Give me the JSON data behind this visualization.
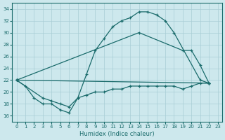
{
  "xlabel": "Humidex (Indice chaleur)",
  "background_color": "#cde8ed",
  "grid_color": "#a8cdd5",
  "line_color": "#1a6b6b",
  "xlim": [
    -0.5,
    23.5
  ],
  "ylim": [
    15.0,
    35.0
  ],
  "xticks": [
    0,
    1,
    2,
    3,
    4,
    5,
    6,
    7,
    8,
    9,
    10,
    11,
    12,
    13,
    14,
    15,
    16,
    17,
    18,
    19,
    20,
    21,
    22,
    23
  ],
  "yticks": [
    16,
    18,
    20,
    22,
    24,
    26,
    28,
    30,
    32,
    34
  ],
  "curve1_x": [
    0,
    1,
    2,
    3,
    4,
    5,
    6,
    7,
    8,
    9,
    10,
    11,
    12,
    13,
    14,
    15,
    16,
    17,
    18,
    21,
    22
  ],
  "curve1_y": [
    22,
    21,
    19,
    18,
    18,
    17,
    16.5,
    19,
    23,
    27,
    29,
    31,
    32,
    32.5,
    33.5,
    33.5,
    33,
    32,
    30,
    22,
    21.5
  ],
  "curve2_x": [
    0,
    14,
    19,
    20,
    21,
    22
  ],
  "curve2_y": [
    22,
    30,
    27,
    27,
    24.5,
    21.5
  ],
  "curve3_x": [
    0,
    22
  ],
  "curve3_y": [
    22,
    21.5
  ],
  "curve4_x": [
    0,
    3,
    4,
    5,
    6,
    7,
    8,
    9,
    10,
    11,
    12,
    13,
    14,
    15,
    16,
    17,
    18,
    19,
    20,
    21,
    22
  ],
  "curve4_y": [
    22,
    19,
    18.5,
    18,
    17.5,
    19,
    19.5,
    20,
    20,
    20.5,
    20.5,
    21,
    21,
    21,
    21,
    21,
    21,
    20.5,
    21,
    21.5,
    21.5
  ]
}
